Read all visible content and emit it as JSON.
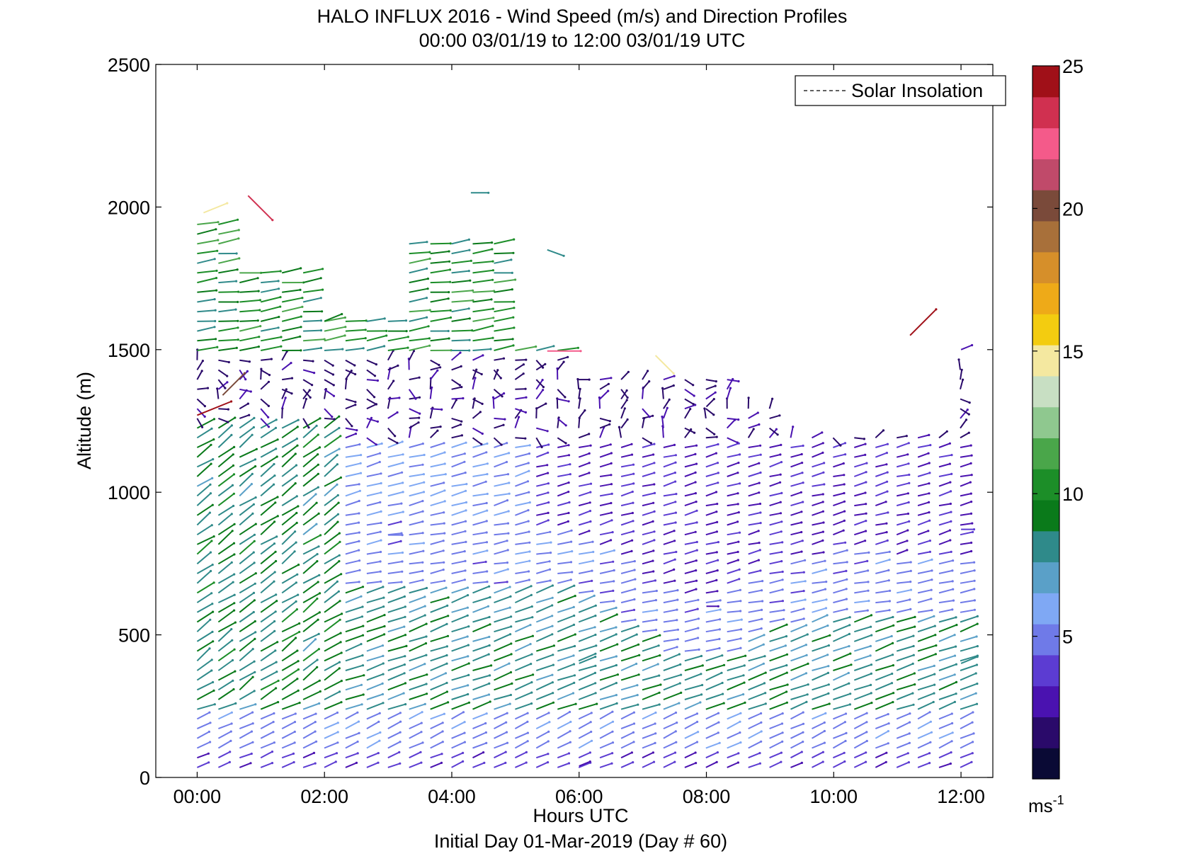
{
  "chart_data": {
    "type": "vector-field",
    "title": "HALO INFLUX 2016 - Wind Speed (m/s) and Direction Profiles",
    "subtitle": "00:00 03/01/19 to 12:00 03/01/19  UTC",
    "xlabel": "Hours UTC",
    "ylabel": "Altitude (m)",
    "footer": "Initial Day 01-Mar-2019 (Day # 60)",
    "x_tick_labels": [
      "00:00",
      "02:00",
      "04:00",
      "06:00",
      "08:00",
      "10:00",
      "12:00"
    ],
    "x_ticks_hours": [
      0,
      2,
      4,
      6,
      8,
      10,
      12
    ],
    "xlim_hours": [
      -0.65,
      12.5
    ],
    "y_ticks": [
      0,
      500,
      1000,
      1500,
      2000,
      2500
    ],
    "ylim": [
      0,
      2500
    ],
    "legend": {
      "label": "Solar Insolation",
      "position": "top-right",
      "style": "dashed"
    },
    "colorbar": {
      "ticks": [
        5,
        10,
        15,
        20,
        25
      ],
      "range": [
        0,
        25
      ],
      "units_base": "ms",
      "units_exp": "-1",
      "colors": [
        "#0a0a35",
        "#2a0a6a",
        "#4a12b0",
        "#5c3cd2",
        "#6f7ae8",
        "#7fa8f4",
        "#5aa0c8",
        "#2f8a8a",
        "#0a7a1a",
        "#1c8e28",
        "#4aa64a",
        "#8fc88f",
        "#c8dfc3",
        "#f4e8a0",
        "#f3cc10",
        "#eeaa18",
        "#d68f2a",
        "#a8703a",
        "#7a4a3a",
        "#c04a6a",
        "#f45a8a",
        "#d03050",
        "#a01018"
      ]
    },
    "sample_vectors": [
      {
        "time_h": 0.1,
        "altitude_m": 1980,
        "speed_ms": 15,
        "dir": "ENE"
      },
      {
        "time_h": 0.8,
        "altitude_m": 2040,
        "speed_ms": 23,
        "dir": "SE"
      },
      {
        "time_h": 0.0,
        "altitude_m": 1270,
        "speed_ms": 25,
        "dir": "ENE"
      },
      {
        "time_h": 0.4,
        "altitude_m": 1340,
        "speed_ms": 20,
        "dir": "NE"
      },
      {
        "time_h": 5.5,
        "altitude_m": 1495,
        "speed_ms": 22,
        "dir": "E"
      },
      {
        "time_h": 7.2,
        "altitude_m": 1480,
        "speed_ms": 15,
        "dir": "SE"
      },
      {
        "time_h": 11.2,
        "altitude_m": 1550,
        "speed_ms": 25,
        "dir": "NE"
      },
      {
        "time_h": 4.3,
        "altitude_m": 2050,
        "speed_ms": 8,
        "dir": "E"
      },
      {
        "time_h": 2.0,
        "altitude_m": 1600,
        "speed_ms": 9,
        "dir": "ENE"
      },
      {
        "time_h": 5.5,
        "altitude_m": 1850,
        "speed_ms": 8,
        "dir": "ESE"
      },
      {
        "time_h": 3.0,
        "altitude_m": 850,
        "speed_ms": 5,
        "dir": "E"
      },
      {
        "time_h": 8.0,
        "altitude_m": 1300,
        "speed_ms": 2,
        "dir": "NE"
      },
      {
        "time_h": 8.0,
        "altitude_m": 600,
        "speed_ms": 3,
        "dir": "E"
      },
      {
        "time_h": 6.0,
        "altitude_m": 400,
        "speed_ms": 8,
        "dir": "ENE"
      },
      {
        "time_h": 6.0,
        "altitude_m": 40,
        "speed_ms": 3,
        "dir": "ENE"
      },
      {
        "time_h": 12.0,
        "altitude_m": 1500,
        "speed_ms": 3,
        "dir": "ENE"
      },
      {
        "time_h": 12.0,
        "altitude_m": 870,
        "speed_ms": 4,
        "dir": "E"
      },
      {
        "time_h": 12.0,
        "altitude_m": 400,
        "speed_ms": 8,
        "dir": "ENE"
      }
    ]
  }
}
